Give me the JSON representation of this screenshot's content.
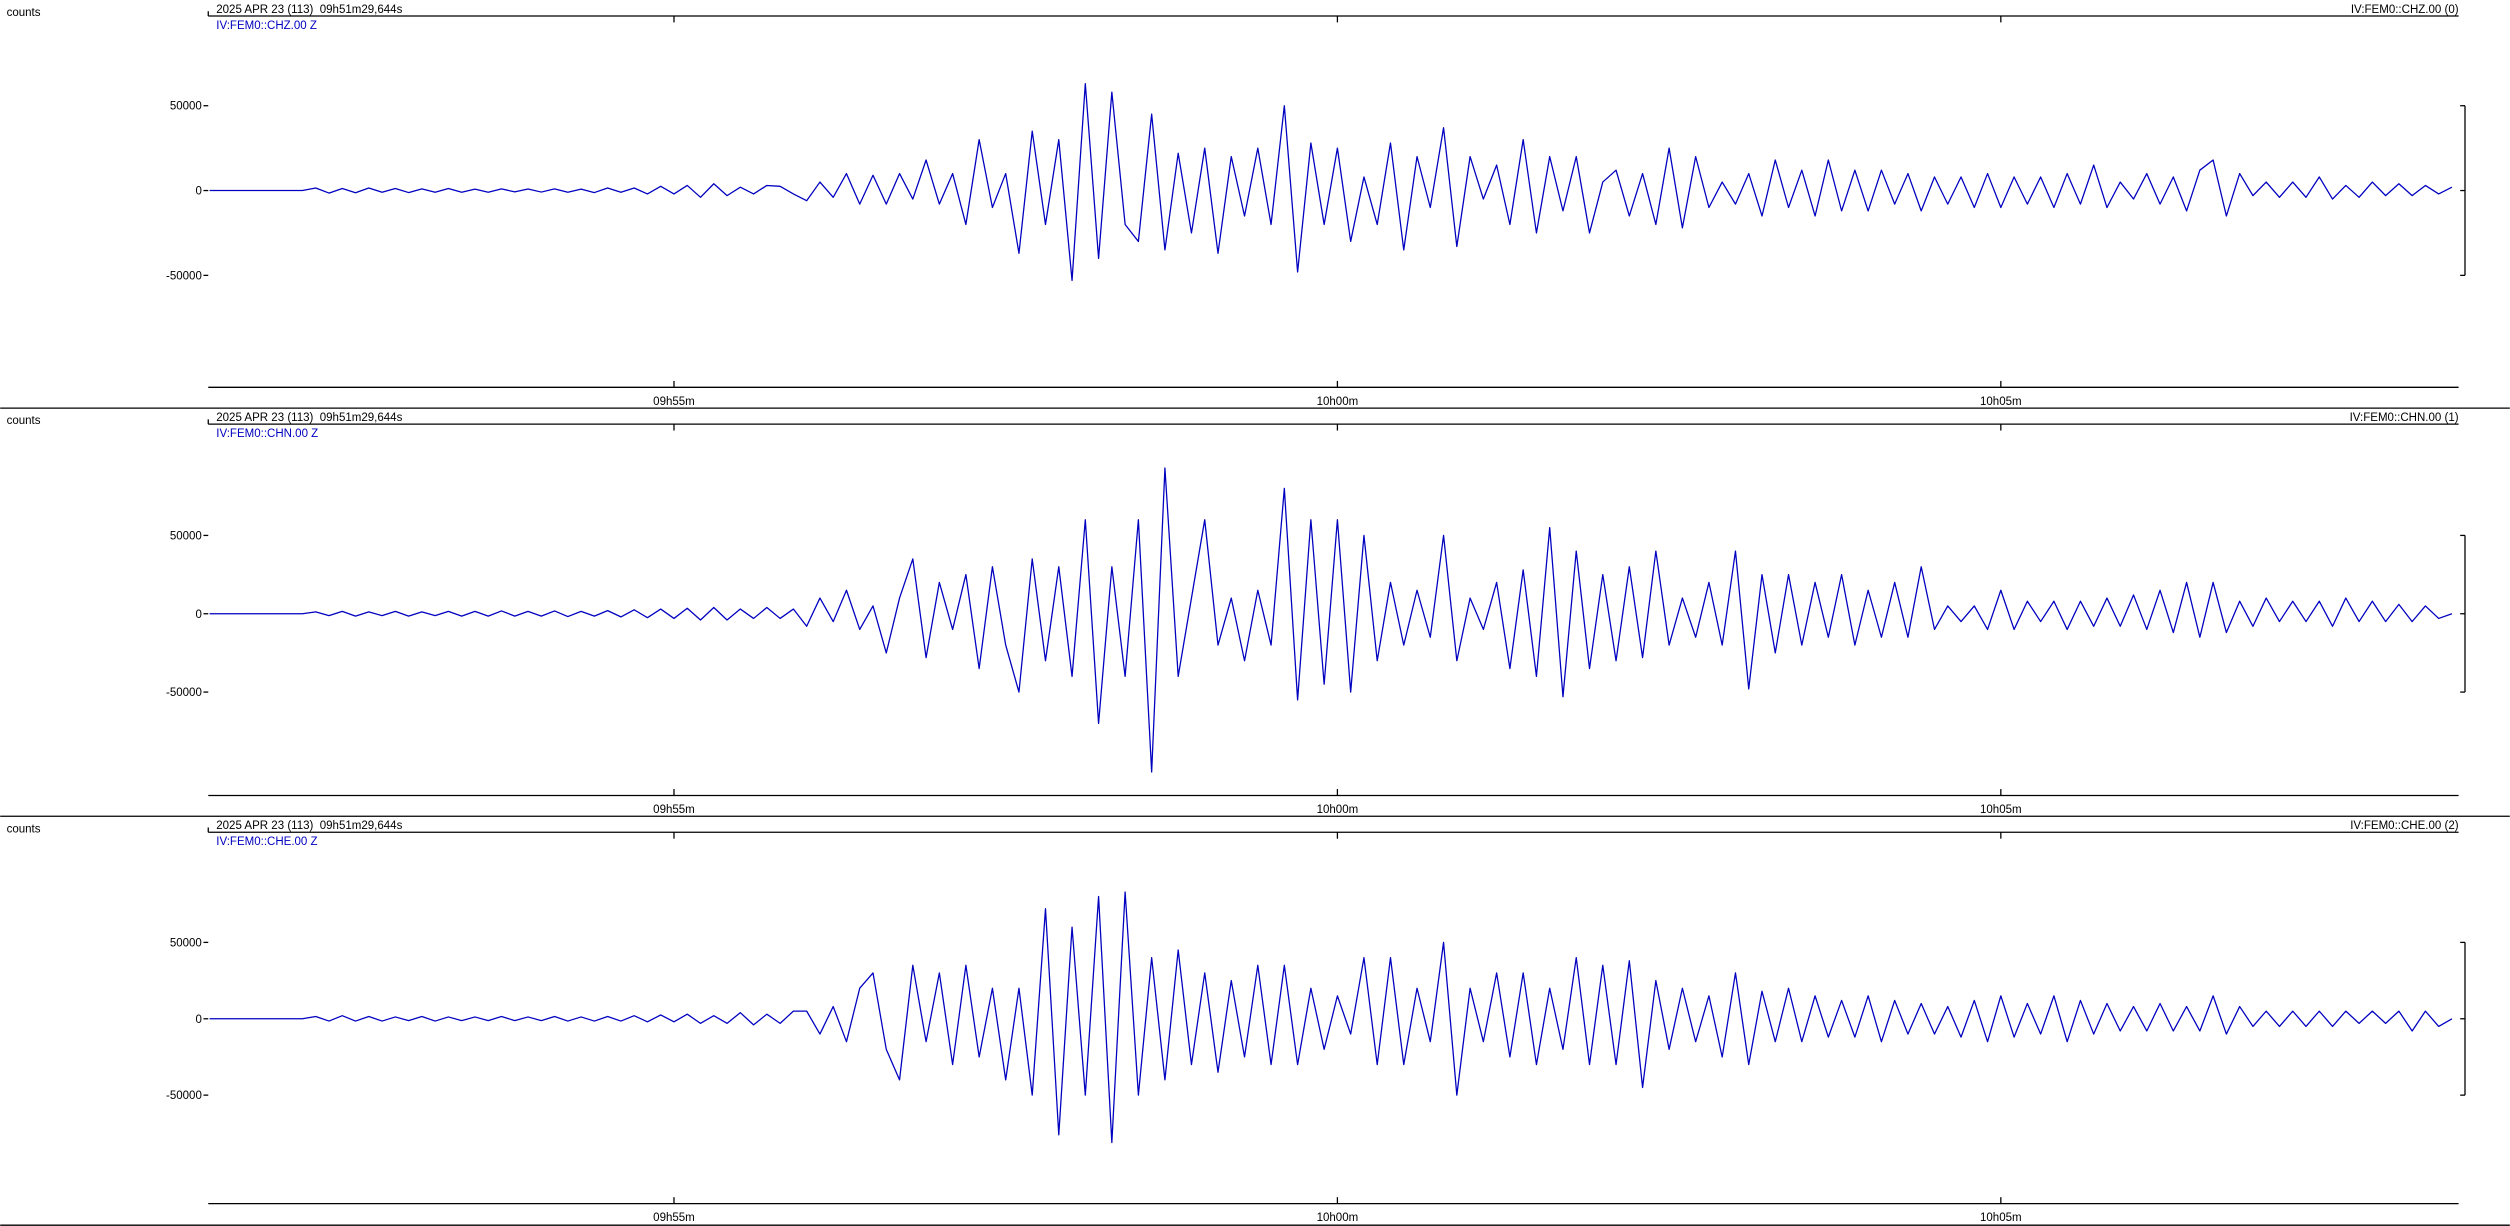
{
  "chart_data": [
    {
      "type": "line",
      "y_label": "counts",
      "title": "2025 APR 23 (113)  09h51m29,644s",
      "annotation": "IV:FEM0::CHZ.00 (0)",
      "xlim": [
        591.49,
        608.45
      ],
      "xticks": [
        {
          "value": 595,
          "label": "09h55m"
        },
        {
          "value": 600,
          "label": "10h00m"
        },
        {
          "value": 605,
          "label": "10h05m"
        }
      ],
      "ylim": [
        -116000,
        101000
      ],
      "yticks": [
        -50000,
        0,
        50000
      ],
      "x": [
        591.5,
        591.6,
        591.7,
        591.8,
        591.9,
        592,
        592.1,
        592.2,
        592.3,
        592.4,
        592.5,
        592.6,
        592.7,
        592.8,
        592.9,
        593,
        593.1,
        593.2,
        593.3,
        593.4,
        593.5,
        593.6,
        593.7,
        593.8,
        593.9,
        594,
        594.1,
        594.2,
        594.3,
        594.4,
        594.5,
        594.6,
        594.7,
        594.8,
        594.9,
        595,
        595.1,
        595.2,
        595.3,
        595.4,
        595.5,
        595.6,
        595.7,
        595.8,
        595.9,
        596,
        596.1,
        596.2,
        596.3,
        596.4,
        596.5,
        596.6,
        596.7,
        596.8,
        596.9,
        597,
        597.1,
        597.2,
        597.3,
        597.4,
        597.5,
        597.6,
        597.7,
        597.8,
        597.9,
        598,
        598.1,
        598.2,
        598.3,
        598.4,
        598.5,
        598.6,
        598.7,
        598.8,
        598.9,
        599,
        599.1,
        599.2,
        599.3,
        599.4,
        599.5,
        599.6,
        599.7,
        599.8,
        599.9,
        600,
        600.1,
        600.2,
        600.3,
        600.4,
        600.5,
        600.6,
        600.7,
        600.8,
        600.9,
        601,
        601.1,
        601.2,
        601.3,
        601.4,
        601.5,
        601.6,
        601.7,
        601.8,
        601.9,
        602,
        602.1,
        602.2,
        602.3,
        602.4,
        602.5,
        602.6,
        602.7,
        602.8,
        602.9,
        603,
        603.1,
        603.2,
        603.3,
        603.4,
        603.5,
        603.6,
        603.7,
        603.8,
        603.9,
        604,
        604.1,
        604.2,
        604.3,
        604.4,
        604.5,
        604.6,
        604.7,
        604.8,
        604.9,
        605,
        605.1,
        605.2,
        605.3,
        605.4,
        605.5,
        605.6,
        605.7,
        605.8,
        605.9,
        606,
        606.1,
        606.2,
        606.3,
        606.4,
        606.5,
        606.6,
        606.7,
        606.8,
        606.9,
        607,
        607.1,
        607.2,
        607.3,
        607.4,
        607.5,
        607.6,
        607.7,
        607.8,
        607.9,
        608,
        608.1,
        608.2,
        608.3,
        608.4
      ],
      "series": [
        {
          "name": "IV:FEM0::CHZ.00 Z",
          "color": "#0000c0",
          "values": [
            0,
            0,
            0,
            0,
            0,
            0,
            0,
            0,
            1500,
            -1500,
            1200,
            -1300,
            1500,
            -1000,
            1200,
            -1200,
            1000,
            -1000,
            1200,
            -1000,
            800,
            -1000,
            1000,
            -800,
            900,
            -900,
            1000,
            -1000,
            800,
            -1200,
            1500,
            -1000,
            1500,
            -2000,
            2500,
            -2000,
            3000,
            -4000,
            4000,
            -3000,
            2000,
            -2000,
            3000,
            2500,
            -2000,
            -6000,
            5000,
            -4000,
            10000,
            -8000,
            9000,
            -8000,
            10000,
            -5000,
            18000,
            -8000,
            10000,
            -20000,
            30000,
            -10000,
            10000,
            -37000,
            35000,
            -20000,
            30000,
            -53000,
            63000,
            -40000,
            58000,
            -20000,
            -30000,
            45000,
            -35000,
            22000,
            -25000,
            25000,
            -37000,
            20000,
            -15000,
            25000,
            -20000,
            50000,
            -48000,
            28000,
            -20000,
            25000,
            -30000,
            8000,
            -20000,
            28000,
            -35000,
            20000,
            -10000,
            37000,
            -33000,
            20000,
            -5000,
            15000,
            -20000,
            30000,
            -25000,
            20000,
            -12000,
            20000,
            -25000,
            5000,
            12000,
            -15000,
            10000,
            -20000,
            25000,
            -22000,
            20000,
            -10000,
            5000,
            -8000,
            10000,
            -15000,
            18000,
            -10000,
            12000,
            -15000,
            18000,
            -12000,
            12000,
            -12000,
            12000,
            -8000,
            10000,
            -12000,
            8000,
            -8000,
            8000,
            -10000,
            10000,
            -10000,
            8000,
            -8000,
            8000,
            -10000,
            10000,
            -8000,
            15000,
            -10000,
            5000,
            -5000,
            10000,
            -8000,
            8000,
            -12000,
            12000,
            18000,
            -15000,
            10000,
            -3000,
            5000,
            -4000,
            5000,
            -4000,
            8000,
            -5000,
            3000,
            -4000,
            5000,
            -3000,
            4000,
            -3000,
            3000,
            -2000,
            2000
          ]
        }
      ]
    },
    {
      "type": "line",
      "y_label": "counts",
      "title": "2025 APR 23 (113)  09h51m29,644s",
      "annotation": "IV:FEM0::CHN.00 (1)",
      "xlim": [
        591.49,
        608.45
      ],
      "xticks": [
        {
          "value": 595,
          "label": "09h55m"
        },
        {
          "value": 600,
          "label": "10h00m"
        },
        {
          "value": 605,
          "label": "10h05m"
        }
      ],
      "ylim": [
        -116000,
        119000
      ],
      "yticks": [
        -50000,
        0,
        50000
      ],
      "x": [
        591.5,
        591.6,
        591.7,
        591.8,
        591.9,
        592,
        592.1,
        592.2,
        592.3,
        592.4,
        592.5,
        592.6,
        592.7,
        592.8,
        592.9,
        593,
        593.1,
        593.2,
        593.3,
        593.4,
        593.5,
        593.6,
        593.7,
        593.8,
        593.9,
        594,
        594.1,
        594.2,
        594.3,
        594.4,
        594.5,
        594.6,
        594.7,
        594.8,
        594.9,
        595,
        595.1,
        595.2,
        595.3,
        595.4,
        595.5,
        595.6,
        595.7,
        595.8,
        595.9,
        596,
        596.1,
        596.2,
        596.3,
        596.4,
        596.5,
        596.6,
        596.7,
        596.8,
        596.9,
        597,
        597.1,
        597.2,
        597.3,
        597.4,
        597.5,
        597.6,
        597.7,
        597.8,
        597.9,
        598,
        598.1,
        598.2,
        598.3,
        598.4,
        598.5,
        598.6,
        598.7,
        598.8,
        598.9,
        599,
        599.1,
        599.2,
        599.3,
        599.4,
        599.5,
        599.6,
        599.7,
        599.8,
        599.9,
        600,
        600.1,
        600.2,
        600.3,
        600.4,
        600.5,
        600.6,
        600.7,
        600.8,
        600.9,
        601,
        601.1,
        601.2,
        601.3,
        601.4,
        601.5,
        601.6,
        601.7,
        601.8,
        601.9,
        602,
        602.1,
        602.2,
        602.3,
        602.4,
        602.5,
        602.6,
        602.7,
        602.8,
        602.9,
        603,
        603.1,
        603.2,
        603.3,
        603.4,
        603.5,
        603.6,
        603.7,
        603.8,
        603.9,
        604,
        604.1,
        604.2,
        604.3,
        604.4,
        604.5,
        604.6,
        604.7,
        604.8,
        604.9,
        605,
        605.1,
        605.2,
        605.3,
        605.4,
        605.5,
        605.6,
        605.7,
        605.8,
        605.9,
        606,
        606.1,
        606.2,
        606.3,
        606.4,
        606.5,
        606.6,
        606.7,
        606.8,
        606.9,
        607,
        607.1,
        607.2,
        607.3,
        607.4,
        607.5,
        607.6,
        607.7,
        607.8,
        607.9,
        608,
        608.1,
        608.2,
        608.3,
        608.4
      ],
      "series": [
        {
          "name": "IV:FEM0::CHN.00 Z",
          "color": "#0000c0",
          "values": [
            0,
            0,
            0,
            0,
            0,
            0,
            0,
            0,
            1200,
            -1200,
            1500,
            -1500,
            1200,
            -1200,
            1500,
            -1500,
            1200,
            -1200,
            1500,
            -1500,
            1500,
            -1500,
            1800,
            -1500,
            1500,
            -1500,
            1800,
            -1800,
            1500,
            -1500,
            2000,
            -2000,
            2500,
            -2500,
            3000,
            -3000,
            3500,
            -4000,
            4000,
            -4000,
            3000,
            -3000,
            4000,
            -3000,
            3000,
            -8000,
            10000,
            -5000,
            15000,
            -10000,
            5000,
            -25000,
            10000,
            35000,
            -28000,
            20000,
            -10000,
            25000,
            -35000,
            30000,
            -20000,
            -50000,
            35000,
            -30000,
            30000,
            -40000,
            60000,
            -70000,
            30000,
            -40000,
            60000,
            -101000,
            93000,
            -40000,
            10000,
            60000,
            -20000,
            10000,
            -30000,
            15000,
            -20000,
            80000,
            -55000,
            60000,
            -45000,
            60000,
            -50000,
            50000,
            -30000,
            20000,
            -20000,
            15000,
            -15000,
            50000,
            -30000,
            10000,
            -10000,
            20000,
            -35000,
            28000,
            -40000,
            55000,
            -53000,
            40000,
            -35000,
            25000,
            -30000,
            30000,
            -28000,
            40000,
            -20000,
            10000,
            -15000,
            20000,
            -20000,
            40000,
            -48000,
            25000,
            -25000,
            25000,
            -20000,
            20000,
            -15000,
            25000,
            -20000,
            15000,
            -15000,
            20000,
            -15000,
            30000,
            -10000,
            5000,
            -5000,
            5000,
            -10000,
            15000,
            -10000,
            8000,
            -5000,
            8000,
            -10000,
            8000,
            -8000,
            10000,
            -8000,
            12000,
            -10000,
            15000,
            -12000,
            20000,
            -15000,
            20000,
            -12000,
            8000,
            -8000,
            10000,
            -5000,
            8000,
            -5000,
            8000,
            -8000,
            10000,
            -5000,
            8000,
            -5000,
            6000,
            -5000,
            5000,
            -3000,
            0
          ]
        }
      ]
    },
    {
      "type": "line",
      "y_label": "counts",
      "title": "2025 APR 23 (113)  09h51m29,644s",
      "annotation": "IV:FEM0::CHE.00 (2)",
      "xlim": [
        591.49,
        608.45
      ],
      "xticks": [
        {
          "value": 595,
          "label": "09h55m"
        },
        {
          "value": 600,
          "label": "10h00m"
        },
        {
          "value": 605,
          "label": "10h05m"
        }
      ],
      "ylim": [
        -121000,
        120000
      ],
      "yticks": [
        -50000,
        0,
        50000
      ],
      "x": [
        591.5,
        591.6,
        591.7,
        591.8,
        591.9,
        592,
        592.1,
        592.2,
        592.3,
        592.4,
        592.5,
        592.6,
        592.7,
        592.8,
        592.9,
        593,
        593.1,
        593.2,
        593.3,
        593.4,
        593.5,
        593.6,
        593.7,
        593.8,
        593.9,
        594,
        594.1,
        594.2,
        594.3,
        594.4,
        594.5,
        594.6,
        594.7,
        594.8,
        594.9,
        595,
        595.1,
        595.2,
        595.3,
        595.4,
        595.5,
        595.6,
        595.7,
        595.8,
        595.9,
        596,
        596.1,
        596.2,
        596.3,
        596.4,
        596.5,
        596.6,
        596.7,
        596.8,
        596.9,
        597,
        597.1,
        597.2,
        597.3,
        597.4,
        597.5,
        597.6,
        597.7,
        597.8,
        597.9,
        598,
        598.1,
        598.2,
        598.3,
        598.4,
        598.5,
        598.6,
        598.7,
        598.8,
        598.9,
        599,
        599.1,
        599.2,
        599.3,
        599.4,
        599.5,
        599.6,
        599.7,
        599.8,
        599.9,
        600,
        600.1,
        600.2,
        600.3,
        600.4,
        600.5,
        600.6,
        600.7,
        600.8,
        600.9,
        601,
        601.1,
        601.2,
        601.3,
        601.4,
        601.5,
        601.6,
        601.7,
        601.8,
        601.9,
        602,
        602.1,
        602.2,
        602.3,
        602.4,
        602.5,
        602.6,
        602.7,
        602.8,
        602.9,
        603,
        603.1,
        603.2,
        603.3,
        603.4,
        603.5,
        603.6,
        603.7,
        603.8,
        603.9,
        604,
        604.1,
        604.2,
        604.3,
        604.4,
        604.5,
        604.6,
        604.7,
        604.8,
        604.9,
        605,
        605.1,
        605.2,
        605.3,
        605.4,
        605.5,
        605.6,
        605.7,
        605.8,
        605.9,
        606,
        606.1,
        606.2,
        606.3,
        606.4,
        606.5,
        606.6,
        606.7,
        606.8,
        606.9,
        607,
        607.1,
        607.2,
        607.3,
        607.4,
        607.5,
        607.6,
        607.7,
        607.8,
        607.9,
        608,
        608.1,
        608.2,
        608.3,
        608.4
      ],
      "series": [
        {
          "name": "IV:FEM0::CHE.00 Z",
          "color": "#0000c0",
          "values": [
            0,
            0,
            0,
            0,
            0,
            0,
            0,
            0,
            1500,
            -1500,
            2000,
            -1500,
            1500,
            -1500,
            1200,
            -1200,
            1500,
            -1500,
            1200,
            -1200,
            1200,
            -1200,
            1500,
            -1200,
            1200,
            -1200,
            1500,
            -1500,
            1200,
            -1500,
            1500,
            -1500,
            2000,
            -2000,
            2500,
            -2000,
            3000,
            -3000,
            2000,
            -3000,
            4000,
            -4000,
            3000,
            -3000,
            5000,
            5000,
            -10000,
            8000,
            -15000,
            20000,
            30000,
            -20000,
            -40000,
            35000,
            -15000,
            30000,
            -30000,
            35000,
            -25000,
            20000,
            -40000,
            20000,
            -50000,
            72000,
            -76000,
            60000,
            -50000,
            80000,
            -81000,
            83000,
            -50000,
            40000,
            -40000,
            45000,
            -30000,
            30000,
            -35000,
            25000,
            -25000,
            35000,
            -30000,
            35000,
            -30000,
            20000,
            -20000,
            15000,
            -10000,
            40000,
            -30000,
            40000,
            -30000,
            20000,
            -15000,
            50000,
            -50000,
            20000,
            -15000,
            30000,
            -25000,
            30000,
            -30000,
            20000,
            -20000,
            40000,
            -30000,
            35000,
            -30000,
            38000,
            -45000,
            25000,
            -20000,
            20000,
            -15000,
            15000,
            -25000,
            30000,
            -30000,
            18000,
            -15000,
            20000,
            -15000,
            15000,
            -12000,
            12000,
            -12000,
            15000,
            -15000,
            12000,
            -10000,
            10000,
            -10000,
            8000,
            -12000,
            12000,
            -15000,
            15000,
            -12000,
            10000,
            -10000,
            15000,
            -15000,
            12000,
            -10000,
            10000,
            -8000,
            8000,
            -8000,
            10000,
            -8000,
            8000,
            -8000,
            15000,
            -10000,
            8000,
            -5000,
            5000,
            -5000,
            5000,
            -5000,
            5000,
            -5000,
            5000,
            -3000,
            5000,
            -3000,
            5000,
            -8000,
            5000,
            -5000,
            0
          ]
        }
      ]
    }
  ]
}
